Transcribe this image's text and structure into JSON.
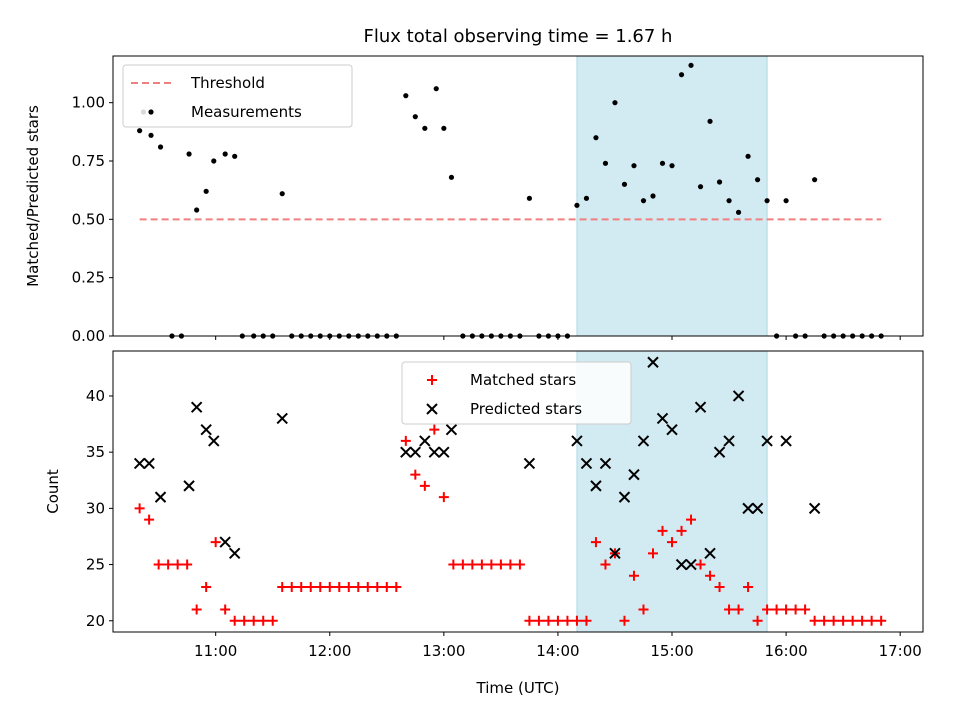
{
  "colors": {
    "threshold": "#f08080",
    "measurements": "#000000",
    "matched": "#ff0000",
    "predicted": "#000000",
    "highlight": "#add8e6"
  },
  "chart_data": [
    {
      "type": "scatter",
      "title": "Flux total observing time = 1.67 h",
      "xlabel": "",
      "ylabel": "Matched/Predicted stars",
      "x_unit": "hours UTC",
      "xlim": [
        "10:06",
        "17:12"
      ],
      "ylim": [
        0,
        1.2
      ],
      "yticks": [
        "0.00",
        "0.25",
        "0.50",
        "0.75",
        "1.00"
      ],
      "legend_position": "upper-left",
      "highlight_span": {
        "from": "14:10",
        "to": "15:50"
      },
      "series": [
        {
          "name": "Threshold",
          "style": "dashed-line",
          "color": "#f08080",
          "points": [
            [
              "10:20",
              0.5
            ],
            [
              "16:50",
              0.5
            ]
          ]
        },
        {
          "name": "Measurements",
          "style": "dot",
          "color": "#000000",
          "points": [
            [
              "10:20",
              0.88
            ],
            [
              "10:22",
              0.96
            ],
            [
              "10:26",
              0.86
            ],
            [
              "10:31",
              0.81
            ],
            [
              "10:37",
              0.0
            ],
            [
              "10:42",
              0.0
            ],
            [
              "10:46",
              0.78
            ],
            [
              "10:50",
              0.54
            ],
            [
              "10:55",
              0.62
            ],
            [
              "10:59",
              0.75
            ],
            [
              "11:05",
              0.78
            ],
            [
              "11:10",
              0.77
            ],
            [
              "11:14",
              0.0
            ],
            [
              "11:20",
              0.0
            ],
            [
              "11:25",
              0.0
            ],
            [
              "11:30",
              0.0
            ],
            [
              "11:35",
              0.61
            ],
            [
              "11:40",
              0.0
            ],
            [
              "11:45",
              0.0
            ],
            [
              "11:50",
              0.0
            ],
            [
              "11:55",
              0.0
            ],
            [
              "12:00",
              0.0
            ],
            [
              "12:05",
              0.0
            ],
            [
              "12:10",
              0.0
            ],
            [
              "12:15",
              0.0
            ],
            [
              "12:20",
              0.0
            ],
            [
              "12:25",
              0.0
            ],
            [
              "12:30",
              0.0
            ],
            [
              "12:35",
              0.0
            ],
            [
              "12:40",
              1.03
            ],
            [
              "12:45",
              0.94
            ],
            [
              "12:50",
              0.89
            ],
            [
              "12:56",
              1.06
            ],
            [
              "13:00",
              0.89
            ],
            [
              "13:04",
              0.68
            ],
            [
              "13:10",
              0.0
            ],
            [
              "13:15",
              0.0
            ],
            [
              "13:20",
              0.0
            ],
            [
              "13:25",
              0.0
            ],
            [
              "13:30",
              0.0
            ],
            [
              "13:35",
              0.0
            ],
            [
              "13:40",
              0.0
            ],
            [
              "13:45",
              0.59
            ],
            [
              "13:50",
              0.0
            ],
            [
              "13:55",
              0.0
            ],
            [
              "14:00",
              0.0
            ],
            [
              "14:05",
              0.0
            ],
            [
              "14:10",
              0.56
            ],
            [
              "14:15",
              0.59
            ],
            [
              "14:20",
              0.85
            ],
            [
              "14:25",
              0.74
            ],
            [
              "14:30",
              1.0
            ],
            [
              "14:35",
              0.65
            ],
            [
              "14:40",
              0.73
            ],
            [
              "14:45",
              0.58
            ],
            [
              "14:50",
              0.6
            ],
            [
              "14:55",
              0.74
            ],
            [
              "15:00",
              0.73
            ],
            [
              "15:05",
              1.12
            ],
            [
              "15:10",
              1.16
            ],
            [
              "15:15",
              0.64
            ],
            [
              "15:20",
              0.92
            ],
            [
              "15:25",
              0.66
            ],
            [
              "15:30",
              0.58
            ],
            [
              "15:35",
              0.53
            ],
            [
              "15:40",
              0.77
            ],
            [
              "15:45",
              0.67
            ],
            [
              "15:50",
              0.58
            ],
            [
              "15:55",
              0.0
            ],
            [
              "16:00",
              0.58
            ],
            [
              "16:05",
              0.0
            ],
            [
              "16:10",
              0.0
            ],
            [
              "16:15",
              0.67
            ],
            [
              "16:20",
              0.0
            ],
            [
              "16:25",
              0.0
            ],
            [
              "16:30",
              0.0
            ],
            [
              "16:35",
              0.0
            ],
            [
              "16:40",
              0.0
            ],
            [
              "16:45",
              0.0
            ],
            [
              "16:50",
              0.0
            ]
          ]
        }
      ]
    },
    {
      "type": "scatter",
      "title": "",
      "xlabel": "Time (UTC)",
      "ylabel": "Count",
      "x_unit": "hours UTC",
      "xlim": [
        "10:06",
        "17:12"
      ],
      "ylim": [
        19,
        44
      ],
      "xticks": [
        "11:00",
        "12:00",
        "13:00",
        "14:00",
        "15:00",
        "16:00",
        "17:00"
      ],
      "yticks": [
        "20",
        "25",
        "30",
        "35",
        "40"
      ],
      "legend_position": "upper-center",
      "highlight_span": {
        "from": "14:10",
        "to": "15:50"
      },
      "series": [
        {
          "name": "Matched stars",
          "style": "plus",
          "color": "#ff0000",
          "points": [
            [
              "10:20",
              30
            ],
            [
              "10:25",
              29
            ],
            [
              "10:30",
              25
            ],
            [
              "10:35",
              25
            ],
            [
              "10:40",
              25
            ],
            [
              "10:45",
              25
            ],
            [
              "10:50",
              21
            ],
            [
              "10:55",
              23
            ],
            [
              "11:00",
              27
            ],
            [
              "11:05",
              21
            ],
            [
              "11:10",
              20
            ],
            [
              "11:15",
              20
            ],
            [
              "11:20",
              20
            ],
            [
              "11:25",
              20
            ],
            [
              "11:30",
              20
            ],
            [
              "11:35",
              23
            ],
            [
              "11:40",
              23
            ],
            [
              "11:45",
              23
            ],
            [
              "11:50",
              23
            ],
            [
              "11:55",
              23
            ],
            [
              "12:00",
              23
            ],
            [
              "12:05",
              23
            ],
            [
              "12:10",
              23
            ],
            [
              "12:15",
              23
            ],
            [
              "12:20",
              23
            ],
            [
              "12:25",
              23
            ],
            [
              "12:30",
              23
            ],
            [
              "12:35",
              23
            ],
            [
              "12:40",
              36
            ],
            [
              "12:45",
              33
            ],
            [
              "12:50",
              32
            ],
            [
              "12:55",
              37
            ],
            [
              "13:00",
              31
            ],
            [
              "13:05",
              25
            ],
            [
              "13:10",
              25
            ],
            [
              "13:15",
              25
            ],
            [
              "13:20",
              25
            ],
            [
              "13:25",
              25
            ],
            [
              "13:30",
              25
            ],
            [
              "13:35",
              25
            ],
            [
              "13:40",
              25
            ],
            [
              "13:45",
              20
            ],
            [
              "13:50",
              20
            ],
            [
              "13:55",
              20
            ],
            [
              "14:00",
              20
            ],
            [
              "14:05",
              20
            ],
            [
              "14:10",
              20
            ],
            [
              "14:15",
              20
            ],
            [
              "14:20",
              27
            ],
            [
              "14:25",
              25
            ],
            [
              "14:30",
              26
            ],
            [
              "14:35",
              20
            ],
            [
              "14:40",
              24
            ],
            [
              "14:45",
              21
            ],
            [
              "14:50",
              26
            ],
            [
              "14:55",
              28
            ],
            [
              "15:00",
              27
            ],
            [
              "15:05",
              28
            ],
            [
              "15:10",
              29
            ],
            [
              "15:15",
              25
            ],
            [
              "15:20",
              24
            ],
            [
              "15:25",
              23
            ],
            [
              "15:30",
              21
            ],
            [
              "15:35",
              21
            ],
            [
              "15:40",
              23
            ],
            [
              "15:45",
              20
            ],
            [
              "15:50",
              21
            ],
            [
              "15:55",
              21
            ],
            [
              "16:00",
              21
            ],
            [
              "16:05",
              21
            ],
            [
              "16:10",
              21
            ],
            [
              "16:15",
              20
            ],
            [
              "16:20",
              20
            ],
            [
              "16:25",
              20
            ],
            [
              "16:30",
              20
            ],
            [
              "16:35",
              20
            ],
            [
              "16:40",
              20
            ],
            [
              "16:45",
              20
            ],
            [
              "16:50",
              20
            ]
          ]
        },
        {
          "name": "Predicted stars",
          "style": "x",
          "color": "#000000",
          "points": [
            [
              "10:20",
              34
            ],
            [
              "10:25",
              34
            ],
            [
              "10:31",
              31
            ],
            [
              "10:46",
              32
            ],
            [
              "10:50",
              39
            ],
            [
              "10:55",
              37
            ],
            [
              "10:59",
              36
            ],
            [
              "11:05",
              27
            ],
            [
              "11:10",
              26
            ],
            [
              "11:35",
              38
            ],
            [
              "12:40",
              35
            ],
            [
              "12:45",
              35
            ],
            [
              "12:50",
              36
            ],
            [
              "12:55",
              35
            ],
            [
              "13:00",
              35
            ],
            [
              "13:04",
              37
            ],
            [
              "13:45",
              34
            ],
            [
              "14:10",
              36
            ],
            [
              "14:15",
              34
            ],
            [
              "14:20",
              32
            ],
            [
              "14:25",
              34
            ],
            [
              "14:30",
              26
            ],
            [
              "14:35",
              31
            ],
            [
              "14:40",
              33
            ],
            [
              "14:45",
              36
            ],
            [
              "14:50",
              43
            ],
            [
              "14:55",
              38
            ],
            [
              "15:00",
              37
            ],
            [
              "15:05",
              25
            ],
            [
              "15:10",
              25
            ],
            [
              "15:15",
              39
            ],
            [
              "15:20",
              26
            ],
            [
              "15:25",
              35
            ],
            [
              "15:30",
              36
            ],
            [
              "15:35",
              40
            ],
            [
              "15:40",
              30
            ],
            [
              "15:45",
              30
            ],
            [
              "15:50",
              36
            ],
            [
              "16:00",
              36
            ],
            [
              "16:15",
              30
            ]
          ]
        }
      ]
    }
  ]
}
